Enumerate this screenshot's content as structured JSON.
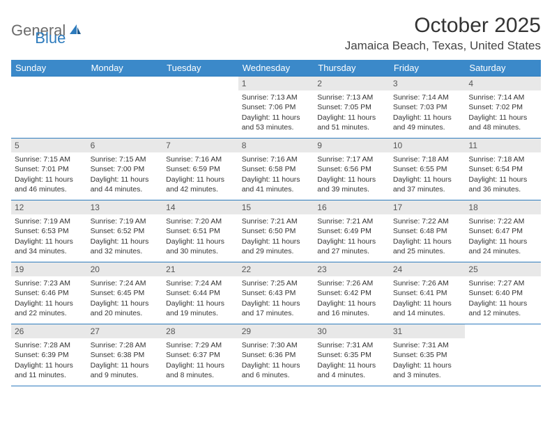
{
  "logo": {
    "text_general": "General",
    "text_blue": "Blue"
  },
  "title": "October 2025",
  "location": "Jamaica Beach, Texas, United States",
  "colors": {
    "header_bg": "#3b89c9",
    "border": "#2d7bbd",
    "daynum_bg": "#e8e8e8",
    "text": "#333333",
    "logo_gray": "#6b6b6b",
    "logo_blue": "#2d7bbd"
  },
  "weekdays": [
    "Sunday",
    "Monday",
    "Tuesday",
    "Wednesday",
    "Thursday",
    "Friday",
    "Saturday"
  ],
  "weeks": [
    [
      {
        "empty": true
      },
      {
        "empty": true
      },
      {
        "empty": true
      },
      {
        "num": "1",
        "sunrise": "Sunrise: 7:13 AM",
        "sunset": "Sunset: 7:06 PM",
        "daylight1": "Daylight: 11 hours",
        "daylight2": "and 53 minutes."
      },
      {
        "num": "2",
        "sunrise": "Sunrise: 7:13 AM",
        "sunset": "Sunset: 7:05 PM",
        "daylight1": "Daylight: 11 hours",
        "daylight2": "and 51 minutes."
      },
      {
        "num": "3",
        "sunrise": "Sunrise: 7:14 AM",
        "sunset": "Sunset: 7:03 PM",
        "daylight1": "Daylight: 11 hours",
        "daylight2": "and 49 minutes."
      },
      {
        "num": "4",
        "sunrise": "Sunrise: 7:14 AM",
        "sunset": "Sunset: 7:02 PM",
        "daylight1": "Daylight: 11 hours",
        "daylight2": "and 48 minutes."
      }
    ],
    [
      {
        "num": "5",
        "sunrise": "Sunrise: 7:15 AM",
        "sunset": "Sunset: 7:01 PM",
        "daylight1": "Daylight: 11 hours",
        "daylight2": "and 46 minutes."
      },
      {
        "num": "6",
        "sunrise": "Sunrise: 7:15 AM",
        "sunset": "Sunset: 7:00 PM",
        "daylight1": "Daylight: 11 hours",
        "daylight2": "and 44 minutes."
      },
      {
        "num": "7",
        "sunrise": "Sunrise: 7:16 AM",
        "sunset": "Sunset: 6:59 PM",
        "daylight1": "Daylight: 11 hours",
        "daylight2": "and 42 minutes."
      },
      {
        "num": "8",
        "sunrise": "Sunrise: 7:16 AM",
        "sunset": "Sunset: 6:58 PM",
        "daylight1": "Daylight: 11 hours",
        "daylight2": "and 41 minutes."
      },
      {
        "num": "9",
        "sunrise": "Sunrise: 7:17 AM",
        "sunset": "Sunset: 6:56 PM",
        "daylight1": "Daylight: 11 hours",
        "daylight2": "and 39 minutes."
      },
      {
        "num": "10",
        "sunrise": "Sunrise: 7:18 AM",
        "sunset": "Sunset: 6:55 PM",
        "daylight1": "Daylight: 11 hours",
        "daylight2": "and 37 minutes."
      },
      {
        "num": "11",
        "sunrise": "Sunrise: 7:18 AM",
        "sunset": "Sunset: 6:54 PM",
        "daylight1": "Daylight: 11 hours",
        "daylight2": "and 36 minutes."
      }
    ],
    [
      {
        "num": "12",
        "sunrise": "Sunrise: 7:19 AM",
        "sunset": "Sunset: 6:53 PM",
        "daylight1": "Daylight: 11 hours",
        "daylight2": "and 34 minutes."
      },
      {
        "num": "13",
        "sunrise": "Sunrise: 7:19 AM",
        "sunset": "Sunset: 6:52 PM",
        "daylight1": "Daylight: 11 hours",
        "daylight2": "and 32 minutes."
      },
      {
        "num": "14",
        "sunrise": "Sunrise: 7:20 AM",
        "sunset": "Sunset: 6:51 PM",
        "daylight1": "Daylight: 11 hours",
        "daylight2": "and 30 minutes."
      },
      {
        "num": "15",
        "sunrise": "Sunrise: 7:21 AM",
        "sunset": "Sunset: 6:50 PM",
        "daylight1": "Daylight: 11 hours",
        "daylight2": "and 29 minutes."
      },
      {
        "num": "16",
        "sunrise": "Sunrise: 7:21 AM",
        "sunset": "Sunset: 6:49 PM",
        "daylight1": "Daylight: 11 hours",
        "daylight2": "and 27 minutes."
      },
      {
        "num": "17",
        "sunrise": "Sunrise: 7:22 AM",
        "sunset": "Sunset: 6:48 PM",
        "daylight1": "Daylight: 11 hours",
        "daylight2": "and 25 minutes."
      },
      {
        "num": "18",
        "sunrise": "Sunrise: 7:22 AM",
        "sunset": "Sunset: 6:47 PM",
        "daylight1": "Daylight: 11 hours",
        "daylight2": "and 24 minutes."
      }
    ],
    [
      {
        "num": "19",
        "sunrise": "Sunrise: 7:23 AM",
        "sunset": "Sunset: 6:46 PM",
        "daylight1": "Daylight: 11 hours",
        "daylight2": "and 22 minutes."
      },
      {
        "num": "20",
        "sunrise": "Sunrise: 7:24 AM",
        "sunset": "Sunset: 6:45 PM",
        "daylight1": "Daylight: 11 hours",
        "daylight2": "and 20 minutes."
      },
      {
        "num": "21",
        "sunrise": "Sunrise: 7:24 AM",
        "sunset": "Sunset: 6:44 PM",
        "daylight1": "Daylight: 11 hours",
        "daylight2": "and 19 minutes."
      },
      {
        "num": "22",
        "sunrise": "Sunrise: 7:25 AM",
        "sunset": "Sunset: 6:43 PM",
        "daylight1": "Daylight: 11 hours",
        "daylight2": "and 17 minutes."
      },
      {
        "num": "23",
        "sunrise": "Sunrise: 7:26 AM",
        "sunset": "Sunset: 6:42 PM",
        "daylight1": "Daylight: 11 hours",
        "daylight2": "and 16 minutes."
      },
      {
        "num": "24",
        "sunrise": "Sunrise: 7:26 AM",
        "sunset": "Sunset: 6:41 PM",
        "daylight1": "Daylight: 11 hours",
        "daylight2": "and 14 minutes."
      },
      {
        "num": "25",
        "sunrise": "Sunrise: 7:27 AM",
        "sunset": "Sunset: 6:40 PM",
        "daylight1": "Daylight: 11 hours",
        "daylight2": "and 12 minutes."
      }
    ],
    [
      {
        "num": "26",
        "sunrise": "Sunrise: 7:28 AM",
        "sunset": "Sunset: 6:39 PM",
        "daylight1": "Daylight: 11 hours",
        "daylight2": "and 11 minutes."
      },
      {
        "num": "27",
        "sunrise": "Sunrise: 7:28 AM",
        "sunset": "Sunset: 6:38 PM",
        "daylight1": "Daylight: 11 hours",
        "daylight2": "and 9 minutes."
      },
      {
        "num": "28",
        "sunrise": "Sunrise: 7:29 AM",
        "sunset": "Sunset: 6:37 PM",
        "daylight1": "Daylight: 11 hours",
        "daylight2": "and 8 minutes."
      },
      {
        "num": "29",
        "sunrise": "Sunrise: 7:30 AM",
        "sunset": "Sunset: 6:36 PM",
        "daylight1": "Daylight: 11 hours",
        "daylight2": "and 6 minutes."
      },
      {
        "num": "30",
        "sunrise": "Sunrise: 7:31 AM",
        "sunset": "Sunset: 6:35 PM",
        "daylight1": "Daylight: 11 hours",
        "daylight2": "and 4 minutes."
      },
      {
        "num": "31",
        "sunrise": "Sunrise: 7:31 AM",
        "sunset": "Sunset: 6:35 PM",
        "daylight1": "Daylight: 11 hours",
        "daylight2": "and 3 minutes."
      },
      {
        "empty": true
      }
    ]
  ]
}
